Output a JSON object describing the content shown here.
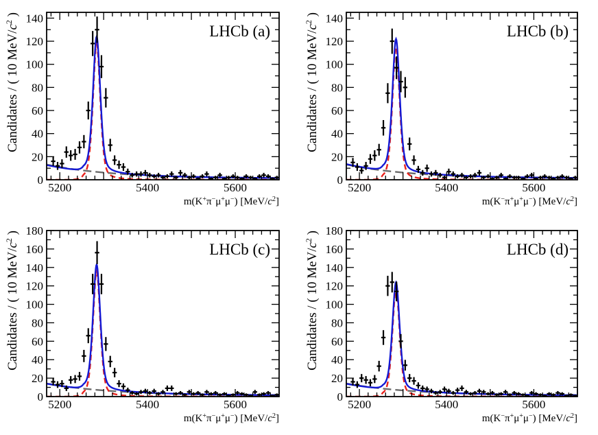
{
  "chart_data": [
    {
      "panel": "(a)",
      "type": "scatter",
      "title": "LHCb",
      "panel_label": "(a)",
      "xlabel_pre": "m(K",
      "xlabel_mid": "π",
      "xlabel_mu": "μ",
      "xlabel_post": ") [MeV/",
      "xlabel_c": "c",
      "xlabel_end": "]",
      "xlabel_charges": [
        "+",
        "−",
        "+",
        "−"
      ],
      "ylabel_main": "Candidates / ( 10 MeV/",
      "ylabel_c": "c",
      "ylabel_end": " )",
      "xlim": [
        5170,
        5700
      ],
      "ylim": [
        0,
        145
      ],
      "xticks": [
        5200,
        5400,
        5600
      ],
      "yticks": [
        0,
        20,
        40,
        60,
        80,
        100,
        120,
        140
      ],
      "peak": 124,
      "sig_amp": 122,
      "bkg_start": 12,
      "x": [
        5185,
        5195,
        5205,
        5215,
        5225,
        5235,
        5245,
        5255,
        5265,
        5275,
        5285,
        5295,
        5305,
        5315,
        5325,
        5335,
        5345,
        5355,
        5365,
        5375,
        5385,
        5395,
        5405,
        5415,
        5425,
        5435,
        5445,
        5455,
        5465,
        5475,
        5485,
        5495,
        5505,
        5515,
        5525,
        5535,
        5545,
        5555,
        5565,
        5575,
        5585,
        5595,
        5605,
        5615,
        5625,
        5635,
        5645,
        5655,
        5665,
        5675,
        5685,
        5695
      ],
      "y": [
        16,
        12,
        14,
        24,
        21,
        22,
        28,
        33,
        60,
        118,
        130,
        98,
        71,
        30,
        17,
        13,
        11,
        7,
        4,
        5,
        5,
        6,
        4,
        3,
        4,
        2,
        3,
        5,
        2,
        6,
        4,
        2,
        3,
        1,
        3,
        5,
        1,
        2,
        4,
        1,
        2,
        3,
        2,
        1,
        3,
        2,
        1,
        3,
        4,
        3,
        1,
        2
      ]
    },
    {
      "panel": "(b)",
      "type": "scatter",
      "title": "LHCb",
      "panel_label": "(b)",
      "xlabel_pre": "m(K",
      "xlabel_mid": "π",
      "xlabel_mu": "μ",
      "xlabel_post": ") [MeV/",
      "xlabel_c": "c",
      "xlabel_end": "]",
      "xlabel_charges": [
        "−",
        "+",
        "+",
        "−"
      ],
      "ylabel_main": "Candidates / ( 10 MeV/",
      "ylabel_c": "c",
      "ylabel_end": " )",
      "xlim": [
        5170,
        5700
      ],
      "ylim": [
        0,
        145
      ],
      "xticks": [
        5200,
        5400,
        5600
      ],
      "yticks": [
        0,
        20,
        40,
        60,
        80,
        100,
        120,
        140
      ],
      "peak": 122,
      "sig_amp": 112,
      "bkg_start": 12,
      "x": [
        5185,
        5195,
        5205,
        5215,
        5225,
        5235,
        5245,
        5255,
        5265,
        5275,
        5285,
        5295,
        5305,
        5315,
        5325,
        5335,
        5345,
        5355,
        5365,
        5375,
        5385,
        5395,
        5405,
        5415,
        5425,
        5435,
        5445,
        5455,
        5465,
        5475,
        5485,
        5495,
        5505,
        5515,
        5525,
        5535,
        5545,
        5555,
        5565,
        5575,
        5585,
        5595,
        5605,
        5615,
        5625,
        5635,
        5645,
        5655,
        5665,
        5675,
        5685,
        5695
      ],
      "y": [
        15,
        11,
        8,
        12,
        18,
        21,
        26,
        45,
        75,
        120,
        97,
        85,
        80,
        31,
        17,
        9,
        6,
        10,
        5,
        6,
        4,
        2,
        7,
        5,
        3,
        4,
        2,
        3,
        4,
        6,
        2,
        3,
        1,
        2,
        4,
        1,
        3,
        2,
        2,
        1,
        3,
        4,
        1,
        2,
        3,
        2,
        1,
        2,
        3,
        2,
        1,
        2
      ]
    },
    {
      "panel": "(c)",
      "type": "scatter",
      "title": "LHCb",
      "panel_label": "(c)",
      "xlabel_pre": "m(K",
      "xlabel_mid": "π",
      "xlabel_mu": "μ",
      "xlabel_post": ") [MeV/",
      "xlabel_c": "c",
      "xlabel_end": "]",
      "xlabel_charges": [
        "+",
        "−",
        "+",
        "−"
      ],
      "ylabel_main": "Candidates / ( 10 MeV/",
      "ylabel_c": "c",
      "ylabel_end": " )",
      "xlim": [
        5170,
        5700
      ],
      "ylim": [
        0,
        180
      ],
      "xticks": [
        5200,
        5400,
        5600
      ],
      "yticks": [
        0,
        20,
        40,
        60,
        80,
        100,
        120,
        140,
        160,
        180
      ],
      "peak": 143,
      "sig_amp": 138,
      "bkg_start": 13,
      "x": [
        5185,
        5195,
        5205,
        5215,
        5225,
        5235,
        5245,
        5255,
        5265,
        5275,
        5285,
        5295,
        5305,
        5315,
        5325,
        5335,
        5345,
        5355,
        5365,
        5375,
        5385,
        5395,
        5405,
        5415,
        5425,
        5435,
        5445,
        5455,
        5465,
        5475,
        5485,
        5495,
        5505,
        5515,
        5525,
        5535,
        5545,
        5555,
        5565,
        5575,
        5585,
        5595,
        5605,
        5615,
        5625,
        5635,
        5645,
        5655,
        5665,
        5675,
        5685,
        5695
      ],
      "y": [
        16,
        13,
        14,
        9,
        18,
        19,
        22,
        44,
        66,
        122,
        156,
        122,
        57,
        38,
        26,
        14,
        11,
        7,
        4,
        3,
        5,
        6,
        4,
        6,
        3,
        5,
        9,
        9,
        3,
        4,
        2,
        5,
        3,
        4,
        2,
        5,
        3,
        4,
        2,
        3,
        1,
        2,
        4,
        3,
        2,
        1,
        5,
        2,
        3,
        4,
        1,
        2
      ]
    },
    {
      "panel": "(d)",
      "type": "scatter",
      "title": "LHCb",
      "panel_label": "(d)",
      "xlabel_pre": "m(K",
      "xlabel_mid": "π",
      "xlabel_mu": "μ",
      "xlabel_post": ") [MeV/",
      "xlabel_c": "c",
      "xlabel_end": "]",
      "xlabel_charges": [
        "−",
        "+",
        "+",
        "−"
      ],
      "ylabel_main": "Candidates / ( 10 MeV/",
      "ylabel_c": "c",
      "ylabel_end": " )",
      "xlim": [
        5170,
        5700
      ],
      "ylim": [
        0,
        180
      ],
      "xticks": [
        5200,
        5400,
        5600
      ],
      "yticks": [
        0,
        20,
        40,
        60,
        80,
        100,
        120,
        140,
        160,
        180
      ],
      "peak": 124,
      "sig_amp": 120,
      "bkg_start": 13,
      "x": [
        5185,
        5195,
        5205,
        5215,
        5225,
        5235,
        5245,
        5255,
        5265,
        5275,
        5285,
        5295,
        5305,
        5315,
        5325,
        5335,
        5345,
        5355,
        5365,
        5375,
        5385,
        5395,
        5405,
        5415,
        5425,
        5435,
        5445,
        5455,
        5465,
        5475,
        5485,
        5495,
        5505,
        5515,
        5525,
        5535,
        5545,
        5555,
        5565,
        5575,
        5585,
        5595,
        5605,
        5615,
        5625,
        5635,
        5645,
        5655,
        5665,
        5675,
        5685,
        5695
      ],
      "y": [
        16,
        13,
        20,
        18,
        15,
        19,
        33,
        64,
        120,
        124,
        114,
        60,
        34,
        20,
        17,
        12,
        9,
        8,
        6,
        4,
        5,
        8,
        6,
        4,
        7,
        9,
        5,
        3,
        4,
        6,
        5,
        3,
        4,
        2,
        3,
        5,
        2,
        4,
        3,
        2,
        1,
        4,
        3,
        2,
        1,
        3,
        2,
        4,
        3,
        1,
        2,
        1
      ]
    }
  ]
}
